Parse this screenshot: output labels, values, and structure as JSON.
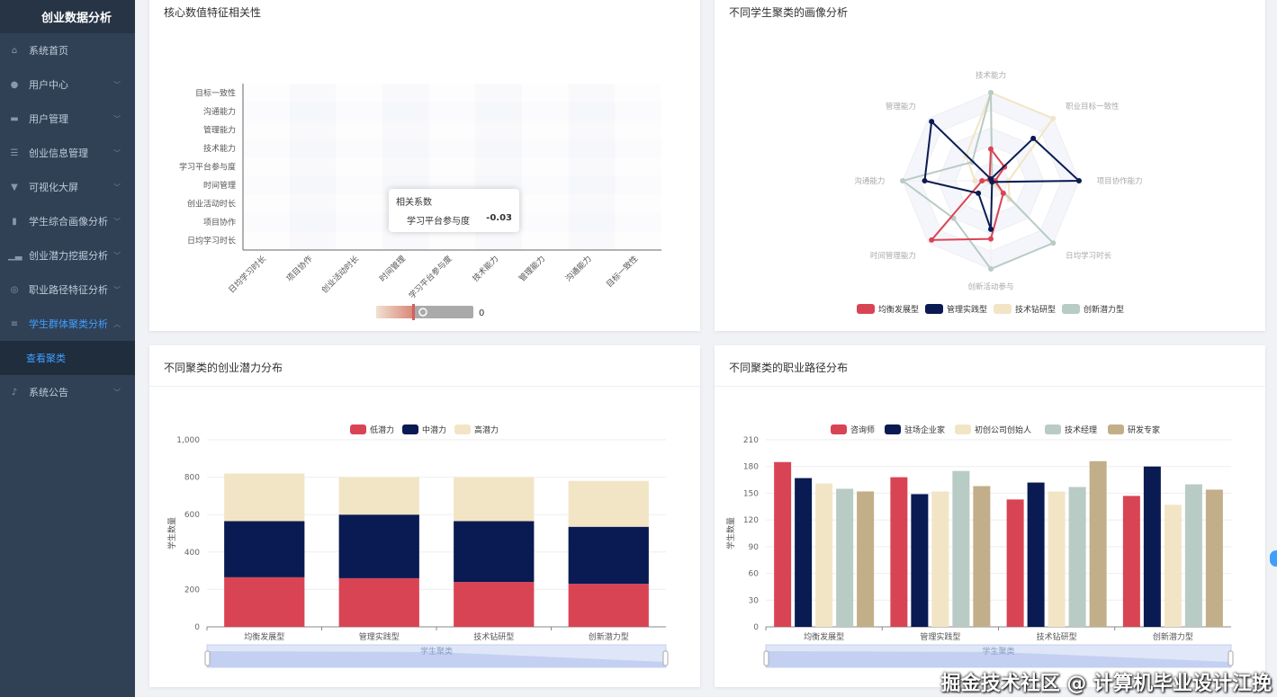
{
  "sidebar": {
    "title": "创业数据分析",
    "items": [
      {
        "label": "系统首页",
        "icon": "home-icon",
        "glyph": "⌂",
        "expand": false
      },
      {
        "label": "用户中心",
        "icon": "user-icon",
        "glyph": "●",
        "expand": true
      },
      {
        "label": "用户管理",
        "icon": "monitor-icon",
        "glyph": "▬",
        "expand": true
      },
      {
        "label": "创业信息管理",
        "icon": "sliders-icon",
        "glyph": "☰",
        "expand": true
      },
      {
        "label": "可视化大屏",
        "icon": "screen-icon",
        "glyph": "▼",
        "expand": true
      },
      {
        "label": "学生综合画像分析",
        "icon": "book-icon",
        "glyph": "▮",
        "expand": true
      },
      {
        "label": "创业潜力挖掘分析",
        "icon": "bar-chart-icon",
        "glyph": "▁▃",
        "expand": true
      },
      {
        "label": "职业路径特征分析",
        "icon": "target-icon",
        "glyph": "◎",
        "expand": true
      },
      {
        "label": "学生群体聚类分析",
        "icon": "list-icon",
        "glyph": "≡",
        "expand": true,
        "active": true
      },
      {
        "label": "系统公告",
        "icon": "microphone-icon",
        "glyph": "♪",
        "expand": true
      }
    ],
    "sub_item": "查看聚类"
  },
  "cards": {
    "heatmap_title": "核心数值特征相关性",
    "radar_title": "不同学生聚类的画像分析",
    "stacked_title": "不同聚类的创业潜力分布",
    "grouped_title": "不同聚类的职业路径分布"
  },
  "tooltip": {
    "title": "相关系数",
    "label": "学习平台参与度",
    "value": "-0.03"
  },
  "watermark": "掘金技术社区 @ 计算机毕业设计江挽",
  "colors": {
    "red": "#d94455",
    "navy": "#0a1a52",
    "cream": "#f2e5c6",
    "sage": "#b8cbc4",
    "tan": "#c2ae88"
  },
  "chart_data": [
    {
      "type": "heatmap",
      "title": "核心数值特征相关性",
      "x": [
        "日均学习时长",
        "项目协作",
        "创业活动时长",
        "时间管理",
        "学习平台参与度",
        "技术能力",
        "管理能力",
        "沟通能力",
        "目标一致性"
      ],
      "y": [
        "日均学习时长",
        "项目协作",
        "创业活动时长",
        "时间管理",
        "学习平台参与度",
        "技术能力",
        "管理能力",
        "沟通能力",
        "目标一致性"
      ],
      "visualmap_label": "0"
    },
    {
      "type": "radar",
      "title": "不同学生聚类的画像分析",
      "indicators": [
        "技术能力",
        "职业目标一致性",
        "项目协作能力",
        "日均学习时长",
        "创新活动参与",
        "时间管理能力",
        "沟通能力",
        "管理能力"
      ],
      "max": 1,
      "series": [
        {
          "name": "均衡发展型",
          "values": [
            0.36,
            0.22,
            0.05,
            0.2,
            0.66,
            0.95,
            0.1,
            0.02
          ]
        },
        {
          "name": "管理实践型",
          "values": [
            0.02,
            0.68,
            1.0,
            0.02,
            0.55,
            0.2,
            0.75,
            0.95
          ]
        },
        {
          "name": "技术钻研型",
          "values": [
            1.0,
            1.0,
            0.2,
            0.3,
            0.02,
            0.02,
            0.18,
            0.4
          ]
        },
        {
          "name": "创新潜力型",
          "values": [
            1.0,
            0.02,
            0.02,
            1.0,
            1.0,
            0.6,
            1.0,
            0.3
          ]
        }
      ]
    },
    {
      "type": "bar",
      "stacked": true,
      "title": "不同聚类的创业潜力分布",
      "categories": [
        "均衡发展型",
        "管理实践型",
        "技术钻研型",
        "创新潜力型"
      ],
      "ylabel": "学生数量",
      "xlabel": "学生聚类",
      "ylim": [
        0,
        1000
      ],
      "yticks": [
        "0",
        "200",
        "400",
        "600",
        "800",
        "1,000"
      ],
      "series": [
        {
          "name": "低潜力",
          "values": [
            265,
            260,
            240,
            230
          ]
        },
        {
          "name": "中潜力",
          "values": [
            300,
            340,
            325,
            305
          ]
        },
        {
          "name": "高潜力",
          "values": [
            255,
            200,
            235,
            245
          ]
        }
      ]
    },
    {
      "type": "bar",
      "stacked": false,
      "title": "不同聚类的职业路径分布",
      "categories": [
        "均衡发展型",
        "管理实践型",
        "技术钻研型",
        "创新潜力型"
      ],
      "ylabel": "学生数量",
      "xlabel": "学生聚类",
      "ylim": [
        0,
        210
      ],
      "yticks": [
        "0",
        "30",
        "60",
        "90",
        "120",
        "150",
        "180",
        "210"
      ],
      "series": [
        {
          "name": "咨询师",
          "values": [
            185,
            168,
            143,
            147
          ]
        },
        {
          "name": "驻场企业家",
          "values": [
            167,
            149,
            162,
            180
          ]
        },
        {
          "name": "初创公司创始人",
          "values": [
            161,
            152,
            152,
            137
          ]
        },
        {
          "name": "技术经理",
          "values": [
            155,
            175,
            157,
            160
          ]
        },
        {
          "name": "研发专家",
          "values": [
            152,
            158,
            186,
            154
          ]
        }
      ]
    }
  ]
}
